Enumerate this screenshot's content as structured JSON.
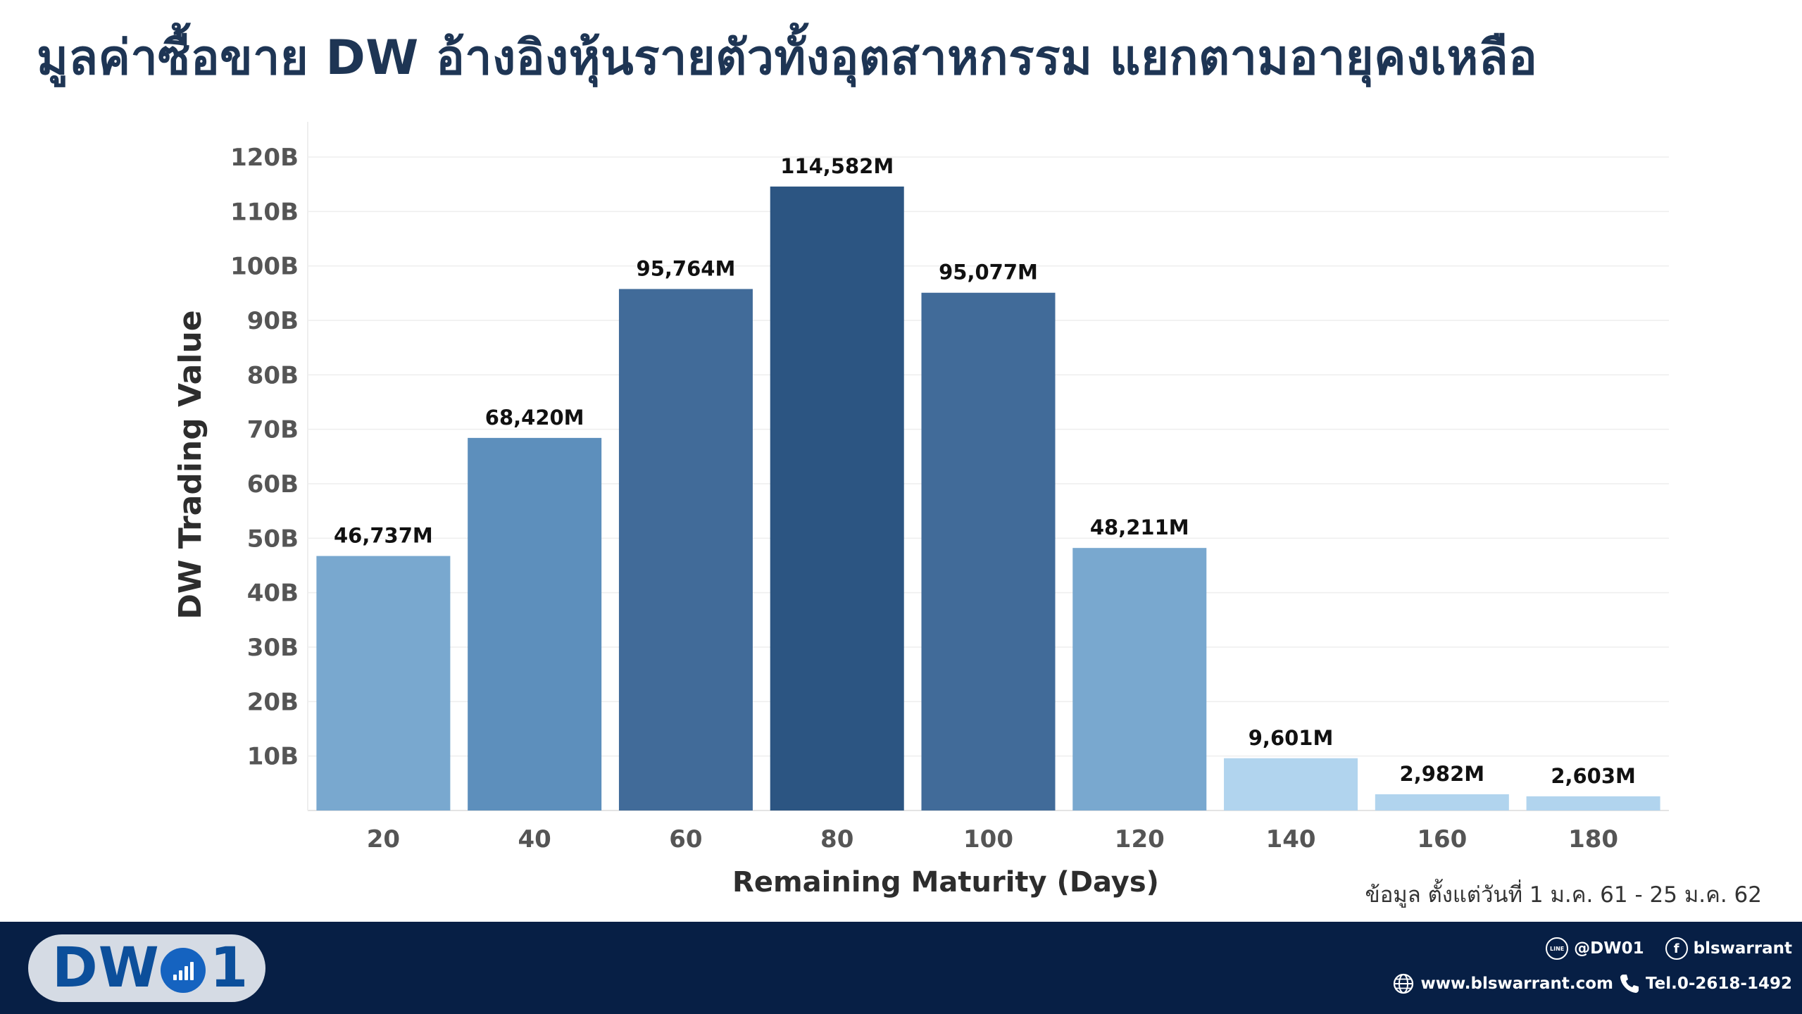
{
  "title": "มูลค่าซื้อขาย DW อ้างอิงหุ้นรายตัวทั้งอุตสาหกรรม แยกตามอายุคงเหลือ",
  "source_note": "ข้อมูล ตั้งแต่วันที่ 1 ม.ค. 61 - 25 ม.ค. 62",
  "chart_data": {
    "type": "bar",
    "title": "มูลค่าซื้อขาย DW อ้างอิงหุ้นรายตัวทั้งอุตสาหกรรม แยกตามอายุคงเหลือ",
    "xlabel": "Remaining Maturity (Days)",
    "ylabel": "DW Trading Value",
    "categories": [
      "20",
      "40",
      "60",
      "80",
      "100",
      "120",
      "140",
      "160",
      "180"
    ],
    "values": [
      46737,
      68420,
      95764,
      114582,
      95077,
      48211,
      9601,
      2982,
      2603
    ],
    "value_unit": "M",
    "data_labels": [
      "46,737M",
      "68,420M",
      "95,764M",
      "114,582M",
      "95,077M",
      "48,211M",
      "9,601M",
      "2,982M",
      "2,603M"
    ],
    "bar_colors": [
      "#79a8cf",
      "#5d8fbc",
      "#416b99",
      "#2c5582",
      "#416b99",
      "#79a8cf",
      "#b1d4ee",
      "#b1d4ee",
      "#b1d4ee"
    ],
    "ylim": [
      0,
      120000
    ],
    "yticks": [
      10000,
      20000,
      30000,
      40000,
      50000,
      60000,
      70000,
      80000,
      90000,
      100000,
      110000,
      120000
    ],
    "ytick_labels": [
      "10B",
      "20B",
      "30B",
      "40B",
      "50B",
      "60B",
      "70B",
      "80B",
      "90B",
      "100B",
      "110B",
      "120B"
    ],
    "grid": true,
    "legend": "none"
  },
  "footer": {
    "logo_left": "DW",
    "logo_right": "1",
    "line_label": "@DW01",
    "facebook_label": "blswarrant",
    "website": "www.blswarrant.com",
    "phone": "Tel.0-2618-1492",
    "line_icon_text": "LINE",
    "facebook_icon_text": "f",
    "colors": {
      "background": "#071f45",
      "logo_pill": "#d5dbe4",
      "logo_text": "#0c4f9b"
    }
  }
}
